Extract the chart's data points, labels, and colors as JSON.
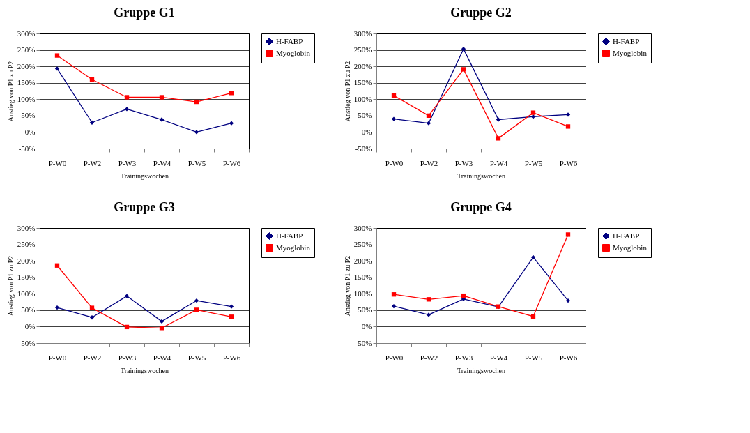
{
  "chart_data": [
    {
      "type": "line",
      "title": "Gruppe G1",
      "xlabel": "Trainingswochen",
      "ylabel": "Anstieg von P1 zu P2",
      "categories": [
        "P-W0",
        "P-W2",
        "P-W3",
        "P-W4",
        "P-W5",
        "P-W6"
      ],
      "series": [
        {
          "name": "H-FABP",
          "color": "#000080",
          "marker": "diamond",
          "values": [
            193,
            29,
            70,
            38,
            0,
            27
          ]
        },
        {
          "name": "Myoglobin",
          "color": "#ff0000",
          "marker": "square",
          "values": [
            233,
            160,
            106,
            106,
            92,
            119
          ]
        }
      ],
      "ylim": [
        -50,
        300
      ],
      "yticks": [
        {
          "value": -50,
          "label": "-50%"
        },
        {
          "value": 0,
          "label": "0%"
        },
        {
          "value": 50,
          "label": "50%"
        },
        {
          "value": 100,
          "label": "100%"
        },
        {
          "value": 150,
          "label": "150%"
        },
        {
          "value": 200,
          "label": "200%"
        },
        {
          "value": 250,
          "label": "250%"
        },
        {
          "value": 300,
          "label": "300%"
        }
      ],
      "grid": "y",
      "legend": "right"
    },
    {
      "type": "line",
      "title": "Gruppe G2",
      "xlabel": "Trainingswochen",
      "ylabel": "Anstieg von P1 zu P2",
      "categories": [
        "P-W0",
        "P-W2",
        "P-W3",
        "P-W4",
        "P-W5",
        "P-W6"
      ],
      "series": [
        {
          "name": "H-FABP",
          "color": "#000080",
          "marker": "diamond",
          "values": [
            40,
            27,
            253,
            38,
            47,
            53
          ]
        },
        {
          "name": "Myoglobin",
          "color": "#ff0000",
          "marker": "square",
          "values": [
            111,
            50,
            191,
            -19,
            59,
            17
          ]
        }
      ],
      "ylim": [
        -50,
        300
      ],
      "yticks": [
        {
          "value": -50,
          "label": "-50%"
        },
        {
          "value": 0,
          "label": "0%"
        },
        {
          "value": 50,
          "label": "50%"
        },
        {
          "value": 100,
          "label": "100%"
        },
        {
          "value": 150,
          "label": "150%"
        },
        {
          "value": 200,
          "label": "200%"
        },
        {
          "value": 250,
          "label": "250%"
        },
        {
          "value": 300,
          "label": "300%"
        }
      ],
      "grid": "y",
      "legend": "right"
    },
    {
      "type": "line",
      "title": "Gruppe G3",
      "xlabel": "Trainingswochen",
      "ylabel": "Anstieg von P1 zu P2",
      "categories": [
        "P-W0",
        "P-W2",
        "P-W3",
        "P-W4",
        "P-W5",
        "P-W6"
      ],
      "series": [
        {
          "name": "H-FABP",
          "color": "#000080",
          "marker": "diamond",
          "values": [
            58,
            28,
            93,
            16,
            79,
            61
          ]
        },
        {
          "name": "Myoglobin",
          "color": "#ff0000",
          "marker": "square",
          "values": [
            186,
            57,
            -1,
            -4,
            51,
            30
          ]
        }
      ],
      "ylim": [
        -50,
        300
      ],
      "yticks": [
        {
          "value": -50,
          "label": "-50%"
        },
        {
          "value": 0,
          "label": "0%"
        },
        {
          "value": 50,
          "label": "50%"
        },
        {
          "value": 100,
          "label": "100%"
        },
        {
          "value": 150,
          "label": "150%"
        },
        {
          "value": 200,
          "label": "200%"
        },
        {
          "value": 250,
          "label": "250%"
        },
        {
          "value": 300,
          "label": "300%"
        }
      ],
      "grid": "y",
      "legend": "right"
    },
    {
      "type": "line",
      "title": "Gruppe G4",
      "xlabel": "Trainingswochen",
      "ylabel": "Anstieg von P1 zu P2",
      "categories": [
        "P-W0",
        "P-W2",
        "P-W3",
        "P-W4",
        "P-W5",
        "P-W6"
      ],
      "series": [
        {
          "name": "H-FABP",
          "color": "#000080",
          "marker": "diamond",
          "values": [
            62,
            36,
            84,
            60,
            211,
            79
          ]
        },
        {
          "name": "Myoglobin",
          "color": "#ff0000",
          "marker": "square",
          "values": [
            98,
            83,
            94,
            61,
            31,
            280
          ]
        }
      ],
      "ylim": [
        -50,
        300
      ],
      "yticks": [
        {
          "value": -50,
          "label": "-50%"
        },
        {
          "value": 0,
          "label": "0%"
        },
        {
          "value": 50,
          "label": "50%"
        },
        {
          "value": 100,
          "label": "100%"
        },
        {
          "value": 150,
          "label": "150%"
        },
        {
          "value": 200,
          "label": "200%"
        },
        {
          "value": 250,
          "label": "250%"
        },
        {
          "value": 300,
          "label": "300%"
        }
      ],
      "grid": "y",
      "legend": "right"
    }
  ]
}
